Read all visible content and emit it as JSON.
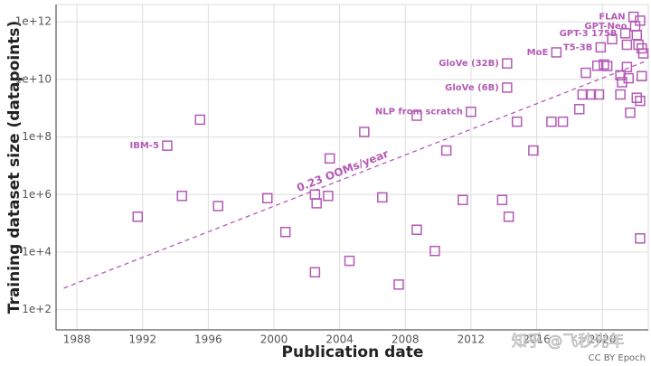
{
  "chart_data": {
    "type": "scatter",
    "x_label": "Publication date",
    "y_label": "Training dataset size (datapoints)",
    "xlim": [
      1986.73,
      2022.8
    ],
    "xticks": [
      1988,
      1992,
      1996,
      2000,
      2004,
      2008,
      2012,
      2016,
      2020
    ],
    "ylim": [
      20,
      4000000000000
    ],
    "yscale": "log",
    "yticks": [
      {
        "value": 100,
        "label": "1e+2"
      },
      {
        "value": 10000,
        "label": "1e+4"
      },
      {
        "value": 1000000,
        "label": "1e+6"
      },
      {
        "value": 100000000,
        "label": "1e+8"
      },
      {
        "value": 10000000000,
        "label": "1e+10"
      },
      {
        "value": 1000000000000,
        "label": "1e+12"
      }
    ],
    "grid": true,
    "color": "#b35ab5",
    "x": [
      1991.7,
      1993.5,
      1994.4,
      1995.5,
      1996.6,
      1999.6,
      2000.7,
      2002.5,
      2002.5,
      2002.6,
      2003.3,
      2003.4,
      2004.6,
      2005.5,
      2006.6,
      2007.6,
      2008.7,
      2008.7,
      2009.8,
      2010.5,
      2011.5,
      2012.0,
      2013.9,
      2014.2,
      2014.2,
      2014.3,
      2014.8,
      2015.8,
      2016.9,
      2017.2,
      2017.6,
      2018.6,
      2018.8,
      2019.0,
      2019.3,
      2019.7,
      2019.8,
      2019.9,
      2020.1,
      2020.3,
      2020.6,
      2021.1,
      2021.1,
      2021.2,
      2021.4,
      2021.5,
      2021.5,
      2021.6,
      2021.7,
      2021.9,
      2022.0,
      2022.1,
      2022.1,
      2022.2,
      2022.3,
      2022.3,
      2022.3,
      2022.4,
      2022.4,
      2022.5
    ],
    "values": [
      170000,
      50000000,
      900000,
      400000000,
      400000,
      750000,
      50000,
      2000,
      1000000,
      500000,
      900000,
      18000000,
      5000,
      150000000,
      800000,
      750,
      60000,
      550000000,
      11000,
      34000000,
      650000,
      750000000,
      650000,
      36000000000,
      5200000000,
      170000,
      340000000,
      34000000,
      340000000,
      87000000000,
      340000000,
      930000000,
      3000000000,
      17000000000,
      3000000000,
      30000000000,
      3000000000,
      130000000000,
      33000000000,
      29000000000,
      250000000000,
      3000000000,
      14000000000,
      8000000000,
      400000000000,
      160000000000,
      27000000000,
      11000000000,
      700000000,
      1500000000000,
      700000000000,
      350000000000,
      2300000000,
      160000000000,
      1100000000000,
      1800000000,
      30000,
      120000000000,
      13000000000,
      80000000000
    ],
    "point_labels": [
      null,
      "IBM-5",
      null,
      null,
      null,
      null,
      null,
      null,
      null,
      null,
      null,
      null,
      null,
      null,
      null,
      null,
      null,
      null,
      null,
      null,
      null,
      "NLP from scratch",
      null,
      "GloVe (32B)",
      "GloVe (6B)",
      null,
      null,
      null,
      null,
      "MoE",
      null,
      null,
      null,
      null,
      null,
      null,
      null,
      "T5-3B",
      null,
      null,
      null,
      null,
      null,
      null,
      "GPT-3 175B",
      null,
      null,
      null,
      null,
      "FLAN",
      "GPT-Neo",
      null,
      null,
      null,
      null,
      null,
      null,
      null,
      null,
      null
    ],
    "trend": {
      "label": "0.23 OOMs/year",
      "x": [
        1987.2,
        2022.6
      ],
      "values": [
        562,
        42000000000
      ]
    },
    "credit": "CC BY Epoch",
    "watermark": "知乎 @飞秒光年"
  }
}
